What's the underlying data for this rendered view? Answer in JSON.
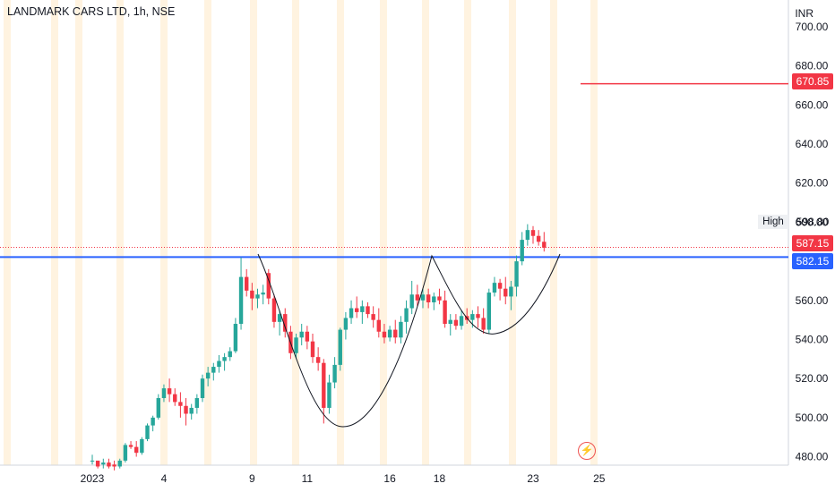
{
  "header": {
    "title": "LANDMARK CARS LTD, 1h, NSE",
    "currency": "INR"
  },
  "markers": {
    "high_label": "High",
    "high_value": "598.80",
    "target_value": "670.85",
    "last_value": "587.15",
    "level_value": "582.15",
    "flash_icon": "lightning-icon"
  },
  "colors": {
    "up": "#26a69a",
    "down": "#f23645",
    "level": "#2962ff",
    "target": "#f23645",
    "session": "#fff3e0"
  },
  "chart_data": {
    "type": "candlestick",
    "title": "LANDMARK CARS LTD, 1h, NSE",
    "ylabel": "INR",
    "ylim": [
      475,
      705
    ],
    "y_ticks": [
      "700.00",
      "680.00",
      "660.00",
      "640.00",
      "620.00",
      "600.00",
      "580.00",
      "560.00",
      "540.00",
      "520.00",
      "500.00",
      "480.00"
    ],
    "x_ticks": [
      "2023",
      "4",
      "9",
      "11",
      "16",
      "18",
      "23",
      "25"
    ],
    "x_tick_index": [
      0,
      13,
      29,
      39,
      54,
      63,
      80,
      92
    ],
    "horizontal_lines": [
      {
        "value": 582.15,
        "label": "582.15",
        "color": "#2962ff"
      },
      {
        "value": 670.85,
        "label": "670.85",
        "color": "#f23645"
      },
      {
        "value": 587.15,
        "label": "587.15",
        "color": "#f23645",
        "style": "dotted"
      }
    ],
    "pattern": "cup and handle",
    "ohlc": [
      [
        478,
        481,
        476,
        478
      ],
      [
        478,
        477,
        474,
        475
      ],
      [
        476,
        479,
        474,
        477
      ],
      [
        477,
        479,
        474,
        475
      ],
      [
        476,
        478,
        473,
        475
      ],
      [
        475,
        479,
        474,
        478
      ],
      [
        478,
        487,
        477,
        486
      ],
      [
        486,
        488,
        484,
        485
      ],
      [
        485,
        488,
        480,
        482
      ],
      [
        482,
        490,
        481,
        489
      ],
      [
        489,
        497,
        488,
        496
      ],
      [
        496,
        501,
        493,
        500
      ],
      [
        500,
        512,
        499,
        510
      ],
      [
        510,
        517,
        508,
        515
      ],
      [
        515,
        520,
        508,
        512
      ],
      [
        512,
        515,
        506,
        508
      ],
      [
        508,
        513,
        500,
        506
      ],
      [
        506,
        510,
        496,
        502
      ],
      [
        502,
        507,
        499,
        505
      ],
      [
        505,
        512,
        502,
        510
      ],
      [
        510,
        522,
        508,
        520
      ],
      [
        520,
        526,
        516,
        523
      ],
      [
        523,
        528,
        519,
        526
      ],
      [
        526,
        532,
        523,
        529
      ],
      [
        529,
        533,
        524,
        531
      ],
      [
        531,
        536,
        529,
        534
      ],
      [
        534,
        551,
        533,
        548
      ],
      [
        548,
        582,
        545,
        572
      ],
      [
        572,
        576,
        562,
        565
      ],
      [
        565,
        569,
        555,
        561
      ],
      [
        561,
        566,
        556,
        563
      ],
      [
        563,
        568,
        558,
        564
      ],
      [
        574,
        576,
        558,
        561
      ],
      [
        561,
        563,
        546,
        549
      ],
      [
        549,
        555,
        542,
        553
      ],
      [
        553,
        556,
        541,
        544
      ],
      [
        544,
        547,
        530,
        533
      ],
      [
        533,
        543,
        530,
        541
      ],
      [
        541,
        548,
        537,
        544
      ],
      [
        544,
        547,
        535,
        539
      ],
      [
        539,
        543,
        528,
        531
      ],
      [
        531,
        536,
        524,
        528
      ],
      [
        528,
        530,
        497,
        505
      ],
      [
        505,
        522,
        502,
        518
      ],
      [
        518,
        531,
        515,
        527
      ],
      [
        527,
        546,
        524,
        545
      ],
      [
        545,
        554,
        540,
        551
      ],
      [
        551,
        560,
        548,
        556
      ],
      [
        556,
        562,
        551,
        554
      ],
      [
        554,
        560,
        548,
        557
      ],
      [
        557,
        559,
        551,
        553
      ],
      [
        553,
        557,
        546,
        550
      ],
      [
        550,
        556,
        541,
        544
      ],
      [
        544,
        548,
        538,
        541
      ],
      [
        541,
        547,
        539,
        545
      ],
      [
        545,
        550,
        538,
        541
      ],
      [
        541,
        552,
        538,
        549
      ],
      [
        549,
        560,
        543,
        556
      ],
      [
        556,
        570,
        553,
        563
      ],
      [
        563,
        568,
        557,
        560
      ],
      [
        560,
        566,
        556,
        563
      ],
      [
        563,
        566,
        556,
        559
      ],
      [
        559,
        564,
        555,
        562
      ],
      [
        562,
        566,
        558,
        560
      ],
      [
        560,
        565,
        546,
        548
      ],
      [
        548,
        553,
        542,
        550
      ],
      [
        550,
        553,
        545,
        547
      ],
      [
        547,
        555,
        545,
        552
      ],
      [
        552,
        556,
        548,
        550
      ],
      [
        550,
        555,
        546,
        553
      ],
      [
        553,
        557,
        546,
        551
      ],
      [
        551,
        556,
        543,
        545
      ],
      [
        545,
        566,
        543,
        564
      ],
      [
        564,
        572,
        562,
        569
      ],
      [
        569,
        571,
        560,
        566
      ],
      [
        566,
        572,
        558,
        562
      ],
      [
        562,
        570,
        555,
        567
      ],
      [
        567,
        583,
        562,
        580
      ],
      [
        580,
        595,
        578,
        591
      ],
      [
        591,
        599,
        588,
        596
      ],
      [
        596,
        598,
        589,
        593
      ],
      [
        593,
        596,
        588,
        590
      ],
      [
        590,
        595,
        585,
        587
      ]
    ]
  }
}
